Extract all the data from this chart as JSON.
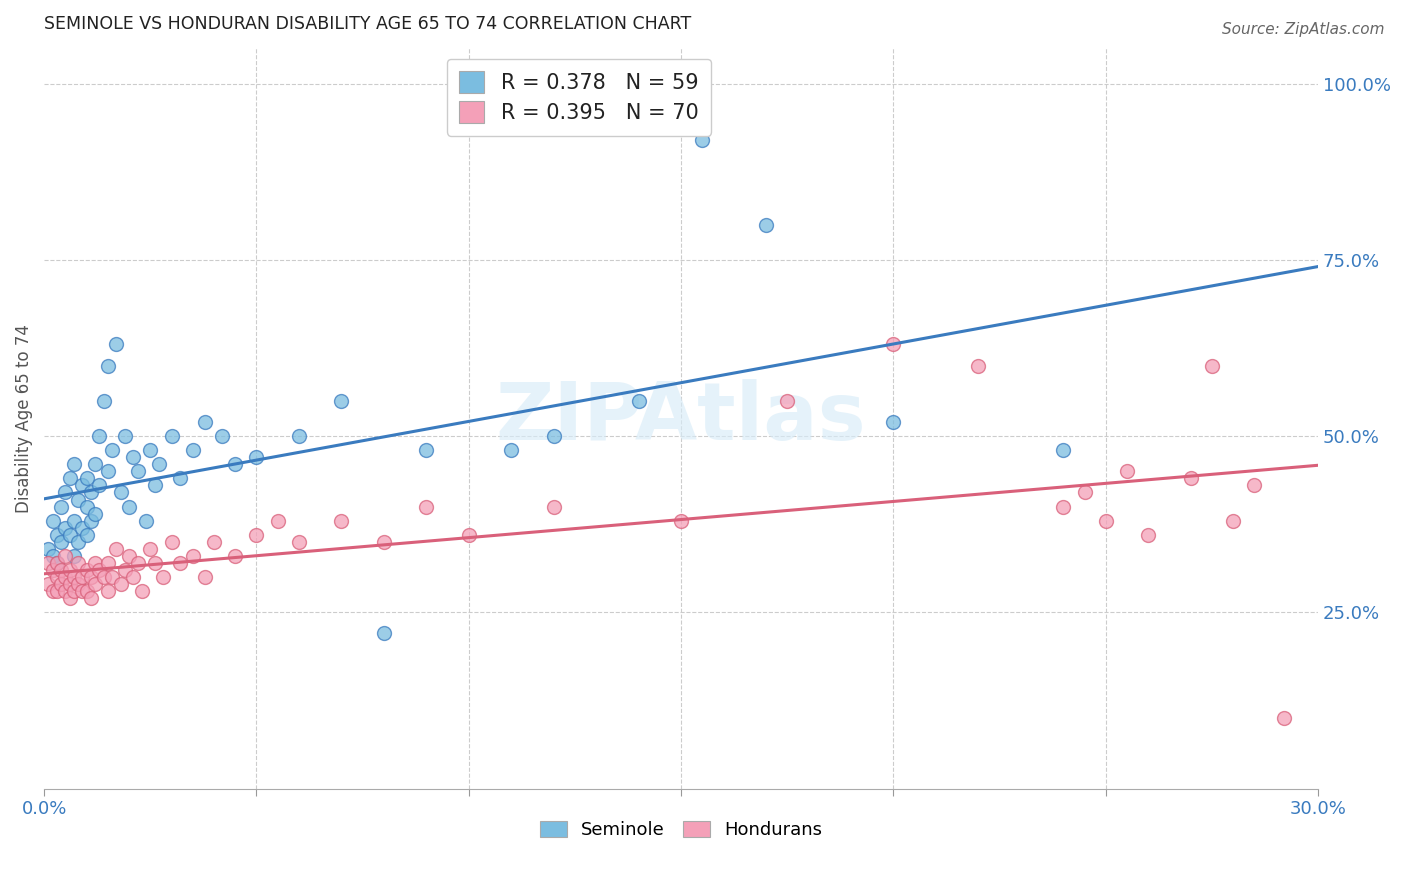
{
  "title": "SEMINOLE VS HONDURAN DISABILITY AGE 65 TO 74 CORRELATION CHART",
  "source": "Source: ZipAtlas.com",
  "ylabel": "Disability Age 65 to 74",
  "xlim": [
    0.0,
    0.3
  ],
  "ylim": [
    0.0,
    1.05
  ],
  "xtick_labels": [
    "0.0%",
    "",
    "",
    "",
    "",
    "",
    "30.0%"
  ],
  "ytick_labels_right": [
    "25.0%",
    "50.0%",
    "75.0%",
    "100.0%"
  ],
  "ytick_vals_right": [
    0.25,
    0.5,
    0.75,
    1.0
  ],
  "seminole_color": "#7bbde0",
  "honduran_color": "#f4a0b8",
  "seminole_line_color": "#3a7bbf",
  "honduran_line_color": "#d9607a",
  "seminole_R": 0.378,
  "seminole_N": 59,
  "honduran_R": 0.395,
  "honduran_N": 70,
  "background_color": "#ffffff",
  "grid_color": "#cccccc",
  "seminole_x": [
    0.001,
    0.002,
    0.002,
    0.003,
    0.003,
    0.004,
    0.004,
    0.005,
    0.005,
    0.006,
    0.006,
    0.007,
    0.007,
    0.007,
    0.008,
    0.008,
    0.009,
    0.009,
    0.01,
    0.01,
    0.01,
    0.011,
    0.011,
    0.012,
    0.012,
    0.013,
    0.013,
    0.014,
    0.015,
    0.015,
    0.016,
    0.017,
    0.018,
    0.019,
    0.02,
    0.021,
    0.022,
    0.024,
    0.025,
    0.026,
    0.027,
    0.03,
    0.032,
    0.035,
    0.038,
    0.042,
    0.045,
    0.05,
    0.06,
    0.07,
    0.08,
    0.09,
    0.11,
    0.12,
    0.14,
    0.155,
    0.17,
    0.2,
    0.24
  ],
  "seminole_y": [
    0.34,
    0.38,
    0.33,
    0.36,
    0.32,
    0.4,
    0.35,
    0.37,
    0.42,
    0.36,
    0.44,
    0.38,
    0.33,
    0.46,
    0.35,
    0.41,
    0.43,
    0.37,
    0.4,
    0.36,
    0.44,
    0.38,
    0.42,
    0.46,
    0.39,
    0.5,
    0.43,
    0.55,
    0.45,
    0.6,
    0.48,
    0.63,
    0.42,
    0.5,
    0.4,
    0.47,
    0.45,
    0.38,
    0.48,
    0.43,
    0.46,
    0.5,
    0.44,
    0.48,
    0.52,
    0.5,
    0.46,
    0.47,
    0.5,
    0.55,
    0.22,
    0.48,
    0.48,
    0.5,
    0.55,
    0.92,
    0.8,
    0.52,
    0.48
  ],
  "honduran_x": [
    0.001,
    0.001,
    0.002,
    0.002,
    0.003,
    0.003,
    0.003,
    0.004,
    0.004,
    0.005,
    0.005,
    0.005,
    0.006,
    0.006,
    0.006,
    0.007,
    0.007,
    0.008,
    0.008,
    0.009,
    0.009,
    0.01,
    0.01,
    0.011,
    0.011,
    0.012,
    0.012,
    0.013,
    0.014,
    0.015,
    0.015,
    0.016,
    0.017,
    0.018,
    0.019,
    0.02,
    0.021,
    0.022,
    0.023,
    0.025,
    0.026,
    0.028,
    0.03,
    0.032,
    0.035,
    0.038,
    0.04,
    0.045,
    0.05,
    0.055,
    0.06,
    0.07,
    0.08,
    0.09,
    0.1,
    0.12,
    0.15,
    0.175,
    0.2,
    0.22,
    0.24,
    0.245,
    0.25,
    0.255,
    0.26,
    0.27,
    0.275,
    0.28,
    0.285,
    0.292
  ],
  "honduran_y": [
    0.29,
    0.32,
    0.28,
    0.31,
    0.3,
    0.28,
    0.32,
    0.29,
    0.31,
    0.28,
    0.3,
    0.33,
    0.29,
    0.27,
    0.31,
    0.28,
    0.3,
    0.29,
    0.32,
    0.28,
    0.3,
    0.31,
    0.28,
    0.3,
    0.27,
    0.32,
    0.29,
    0.31,
    0.3,
    0.28,
    0.32,
    0.3,
    0.34,
    0.29,
    0.31,
    0.33,
    0.3,
    0.32,
    0.28,
    0.34,
    0.32,
    0.3,
    0.35,
    0.32,
    0.33,
    0.3,
    0.35,
    0.33,
    0.36,
    0.38,
    0.35,
    0.38,
    0.35,
    0.4,
    0.36,
    0.4,
    0.38,
    0.55,
    0.63,
    0.6,
    0.4,
    0.42,
    0.38,
    0.45,
    0.36,
    0.44,
    0.6,
    0.38,
    0.43,
    0.1
  ]
}
